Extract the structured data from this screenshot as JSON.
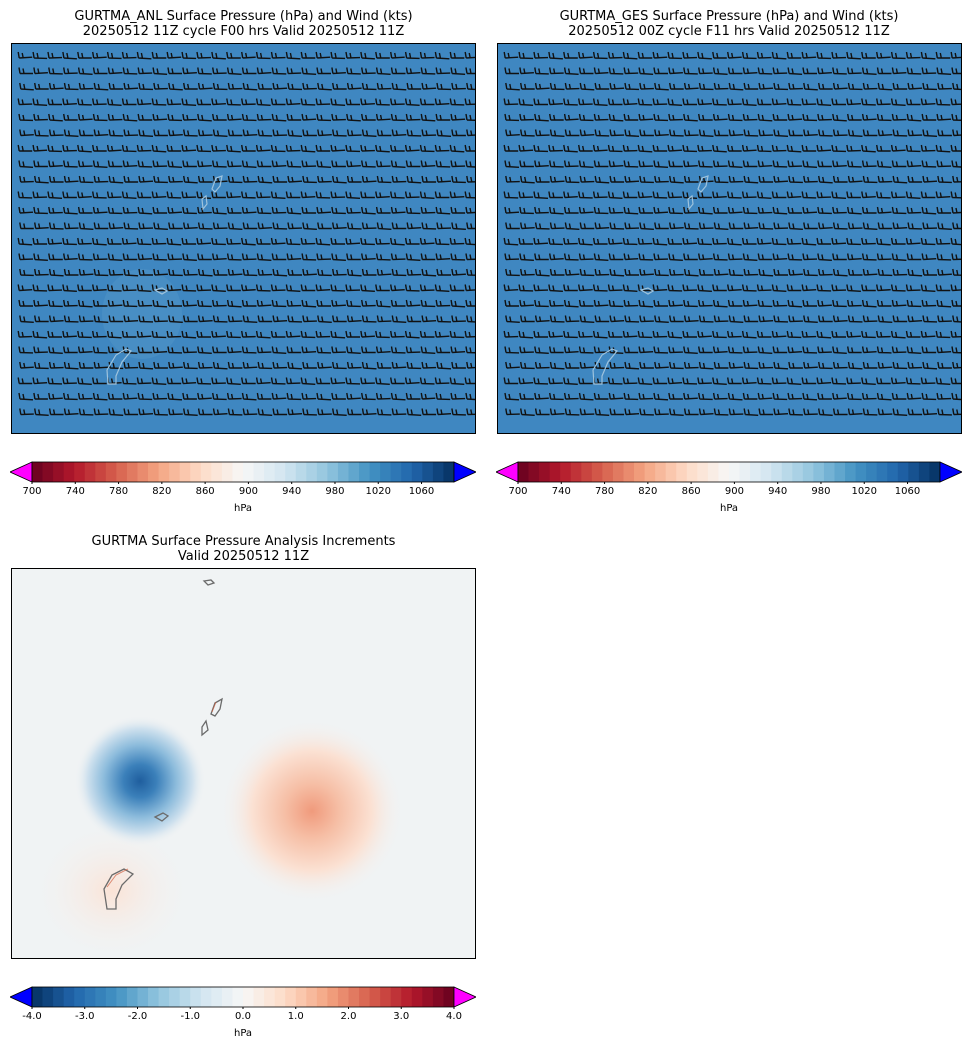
{
  "panels": [
    {
      "title_line1": "GURTMA_ANL Surface Pressure (hPa) and Wind (kts)",
      "title_line2": "20250512 11Z cycle F00 hrs Valid 20250512 11Z"
    },
    {
      "title_line1": "GURTMA_GES Surface Pressure (hPa) and Wind (kts)",
      "title_line2": "20250512 00Z cycle F11 hrs Valid 20250512 11Z"
    },
    {
      "title_line1": "GURTMA Surface Pressure Analysis Increments",
      "title_line2": "Valid 20250512 11Z"
    }
  ],
  "colorbars": {
    "pressure": {
      "label": "hPa",
      "ticks": [
        "700",
        "740",
        "780",
        "820",
        "860",
        "900",
        "940",
        "980",
        "1020",
        "1060"
      ],
      "min": 700,
      "max": 1090,
      "under_color": "#ff00ff",
      "over_color": "#0000ff"
    },
    "increment": {
      "label": "hPa",
      "ticks": [
        "-4.0",
        "-3.0",
        "-2.0",
        "-1.0",
        "0.0",
        "1.0",
        "2.0",
        "3.0",
        "4.0"
      ],
      "min": -4.0,
      "max": 4.0,
      "under_color": "#0000ff",
      "over_color": "#ff00ff"
    }
  },
  "chart_data": [
    {
      "type": "heatmap",
      "title": "GURTMA_ANL Surface Pressure (hPa) and Wind (kts)",
      "field": "surface pressure",
      "units": "hPa",
      "approx_value": 1012,
      "fill_color": "#3f87c1",
      "wind_barbs": true,
      "wind_direction": "easterly"
    },
    {
      "type": "heatmap",
      "title": "GURTMA_GES Surface Pressure (hPa) and Wind (kts)",
      "field": "surface pressure",
      "units": "hPa",
      "approx_value": 1012,
      "fill_color": "#3f87c1",
      "wind_barbs": true,
      "wind_direction": "easterly"
    },
    {
      "type": "heatmap",
      "title": "GURTMA Surface Pressure Analysis Increments",
      "field": "pressure increment",
      "units": "hPa",
      "features": [
        {
          "kind": "negative increment",
          "peak": -2.3
        },
        {
          "kind": "positive increment",
          "peak": 1.3
        },
        {
          "kind": "positive increment",
          "peak": 0.3
        }
      ]
    }
  ]
}
